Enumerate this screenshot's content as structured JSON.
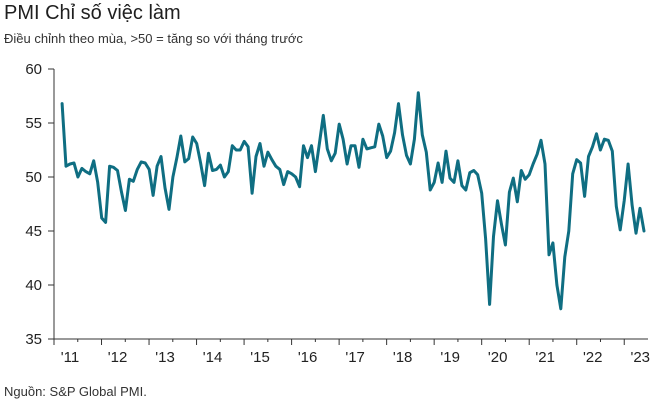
{
  "chart_data": {
    "type": "line",
    "title": "PMI Chỉ số việc làm",
    "subtitle": "Điều chỉnh theo mùa, >50 = tăng so với tháng trước",
    "source": "Nguồn: S&P Global PMI.",
    "xlabel": "",
    "ylabel": "",
    "ylim": [
      35,
      60
    ],
    "yticks": [
      35,
      40,
      45,
      50,
      55,
      60
    ],
    "xticks": [
      "'11",
      "'12",
      "'13",
      "'14",
      "'15",
      "'16",
      "'17",
      "'18",
      "'19",
      "'20",
      "'21",
      "'22",
      "'23"
    ],
    "x_start": 2011.17,
    "x_step": 0.0833,
    "color": "#0f6e82",
    "series": [
      {
        "name": "PMI Chỉ số việc làm",
        "values": [
          56.8,
          51.0,
          51.2,
          51.3,
          50.0,
          50.8,
          50.5,
          50.3,
          51.5,
          49.5,
          46.2,
          45.8,
          51.0,
          50.9,
          50.6,
          48.6,
          46.9,
          49.8,
          49.6,
          50.7,
          51.4,
          51.3,
          50.7,
          48.3,
          51.0,
          51.9,
          49.0,
          47.0,
          50.0,
          51.8,
          53.8,
          51.4,
          51.7,
          53.7,
          53.1,
          51.3,
          49.2,
          52.2,
          50.6,
          50.7,
          51.1,
          50.0,
          50.5,
          52.9,
          52.5,
          52.5,
          53.3,
          52.8,
          48.5,
          51.9,
          53.1,
          51.0,
          52.3,
          51.6,
          51.0,
          50.7,
          49.3,
          50.5,
          50.3,
          50.0,
          49.1,
          52.9,
          51.8,
          52.9,
          50.5,
          53.1,
          55.7,
          52.6,
          51.5,
          52.2,
          54.9,
          53.5,
          51.2,
          52.9,
          52.9,
          50.9,
          53.5,
          52.6,
          52.7,
          52.8,
          54.9,
          53.8,
          51.8,
          52.4,
          54.1,
          56.8,
          53.9,
          52.0,
          51.2,
          53.5,
          57.8,
          53.9,
          52.3,
          48.8,
          49.5,
          51.3,
          49.5,
          52.4,
          49.9,
          49.5,
          51.5,
          49.2,
          48.8,
          50.4,
          50.6,
          50.2,
          48.5,
          44.3,
          38.2,
          44.5,
          47.8,
          45.6,
          43.7,
          48.6,
          49.9,
          47.7,
          50.6,
          49.8,
          50.2,
          51.2,
          52.1,
          53.4,
          51.2,
          42.8,
          43.9,
          40.0,
          37.8,
          42.6,
          45.0,
          50.3,
          51.6,
          51.3,
          48.2,
          51.9,
          52.8,
          54.0,
          52.5,
          53.5,
          53.4,
          52.4,
          47.3,
          45.1,
          47.8,
          51.2,
          47.4,
          44.8,
          47.1,
          45.0
        ]
      }
    ]
  }
}
